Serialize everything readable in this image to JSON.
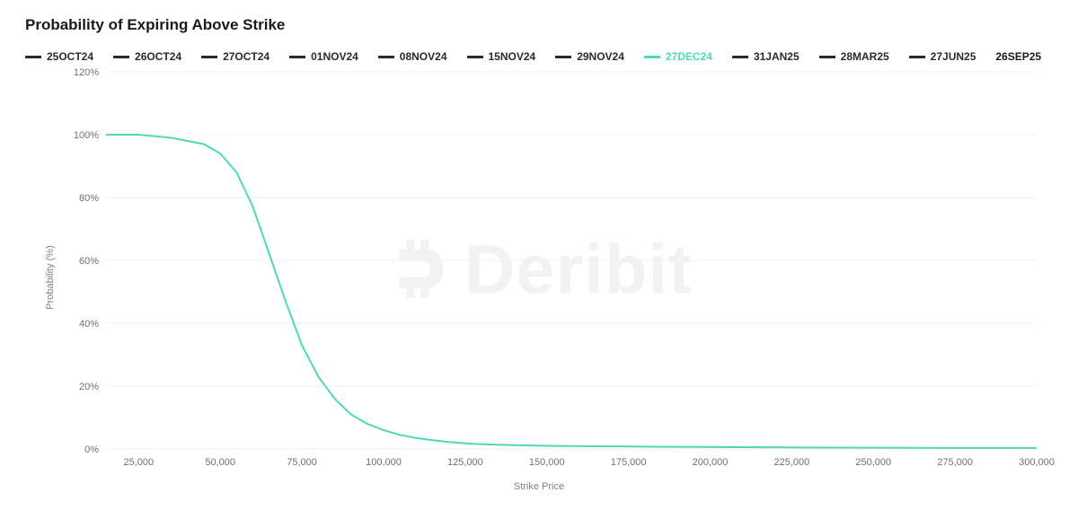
{
  "chart": {
    "type": "line",
    "title": "Probability of Expiring Above Strike",
    "watermark_text": "Deribit",
    "background_color": "#ffffff",
    "grid_color": "#f0f0f0",
    "axis_text_color": "#707070",
    "title_color": "#1a1a1a",
    "title_fontsize": 17,
    "label_fontsize": 11,
    "tick_fontsize": 11,
    "x": {
      "label": "Strike Price",
      "min": 15000,
      "max": 300000,
      "ticks": [
        25000,
        50000,
        75000,
        100000,
        125000,
        150000,
        175000,
        200000,
        225000,
        250000,
        275000,
        300000
      ],
      "tick_labels": [
        "25,000",
        "50,000",
        "75,000",
        "100,000",
        "125,000",
        "150,000",
        "175,000",
        "200,000",
        "225,000",
        "250,000",
        "275,000",
        "300,000"
      ]
    },
    "y": {
      "label": "Probability (%)",
      "min": 0,
      "max": 120,
      "ticks": [
        0,
        20,
        40,
        60,
        80,
        100,
        120
      ],
      "tick_labels": [
        "0%",
        "20%",
        "40%",
        "60%",
        "80%",
        "100%",
        "120%"
      ]
    },
    "legend": [
      {
        "label": "25OCT24",
        "color": "#2b2b2b",
        "visible": false
      },
      {
        "label": "26OCT24",
        "color": "#2b2b2b",
        "visible": false
      },
      {
        "label": "27OCT24",
        "color": "#2b2b2b",
        "visible": false
      },
      {
        "label": "01NOV24",
        "color": "#2b2b2b",
        "visible": false
      },
      {
        "label": "08NOV24",
        "color": "#2b2b2b",
        "visible": false
      },
      {
        "label": "15NOV24",
        "color": "#2b2b2b",
        "visible": false
      },
      {
        "label": "29NOV24",
        "color": "#2b2b2b",
        "visible": false
      },
      {
        "label": "27DEC24",
        "color": "#4fd8b8",
        "visible": true
      },
      {
        "label": "31JAN25",
        "color": "#2b2b2b",
        "visible": false
      },
      {
        "label": "28MAR25",
        "color": "#2b2b2b",
        "visible": false
      },
      {
        "label": "27JUN25",
        "color": "#2b2b2b",
        "visible": false
      },
      {
        "label": "26SEP25",
        "color": null,
        "visible": false,
        "no_swatch": true
      }
    ],
    "series": [
      {
        "name": "27DEC24",
        "color": "#4fd8b8",
        "line_width": 2,
        "points": [
          [
            15000,
            100
          ],
          [
            20000,
            100
          ],
          [
            25000,
            100
          ],
          [
            30000,
            99.5
          ],
          [
            35000,
            99
          ],
          [
            40000,
            98
          ],
          [
            45000,
            97
          ],
          [
            50000,
            94
          ],
          [
            55000,
            88
          ],
          [
            60000,
            77
          ],
          [
            65000,
            62
          ],
          [
            70000,
            47
          ],
          [
            75000,
            33
          ],
          [
            80000,
            23
          ],
          [
            85000,
            16
          ],
          [
            90000,
            11
          ],
          [
            95000,
            8
          ],
          [
            100000,
            6
          ],
          [
            105000,
            4.5
          ],
          [
            110000,
            3.5
          ],
          [
            115000,
            2.8
          ],
          [
            120000,
            2.2
          ],
          [
            125000,
            1.8
          ],
          [
            130000,
            1.5
          ],
          [
            140000,
            1.2
          ],
          [
            150000,
            1.0
          ],
          [
            160000,
            0.9
          ],
          [
            175000,
            0.8
          ],
          [
            200000,
            0.6
          ],
          [
            225000,
            0.5
          ],
          [
            250000,
            0.4
          ],
          [
            275000,
            0.3
          ],
          [
            300000,
            0.3
          ]
        ]
      }
    ],
    "line_width": 2
  }
}
